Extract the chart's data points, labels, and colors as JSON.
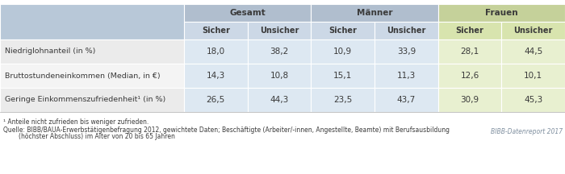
{
  "rows": [
    [
      "Niedriglohnanteil (in %)",
      "18,0",
      "38,2",
      "10,9",
      "33,9",
      "28,1",
      "44,5"
    ],
    [
      "Bruttostundeneinkommen (Median, in €)",
      "14,3",
      "10,8",
      "15,1",
      "11,3",
      "12,6",
      "10,1"
    ],
    [
      "Geringe Einkommenszufriedenheit¹ (in %)",
      "26,5",
      "44,3",
      "23,5",
      "43,7",
      "30,9",
      "45,3"
    ]
  ],
  "footnote1": "¹ Anteile nicht zufrieden bis weniger zufrieden.",
  "footnote2": "Quelle: BIBB/BAUA-Erwerbstätigenbefragung 2012, gewichtete Daten; Beschäftigte (Arbeiter/-innen, Angestellte, Beamte) mit Berufsausbildung",
  "footnote3": "        (höchster Abschluss) im Alter von 20 bis 65 Jahren",
  "source_right": "BIBB-Datenreport 2017",
  "bg_label_header": "#b8c8d8",
  "bg_gesamt_h1": "#b0bece",
  "bg_maenner_h1": "#b0bece",
  "bg_frauen_h1": "#c5d19a",
  "bg_gesamt_h2": "#ccd8e6",
  "bg_maenner_h2": "#ccd8e6",
  "bg_frauen_h2": "#d8e4ae",
  "bg_row_label": "#e8e8e8",
  "bg_row_gesamt": "#dde8f2",
  "bg_row_maenner": "#dde8f2",
  "bg_row_frauen": "#e8f0d0",
  "border_color": "#ffffff",
  "text_dark": "#3a3a3a",
  "text_source": "#8090a0"
}
